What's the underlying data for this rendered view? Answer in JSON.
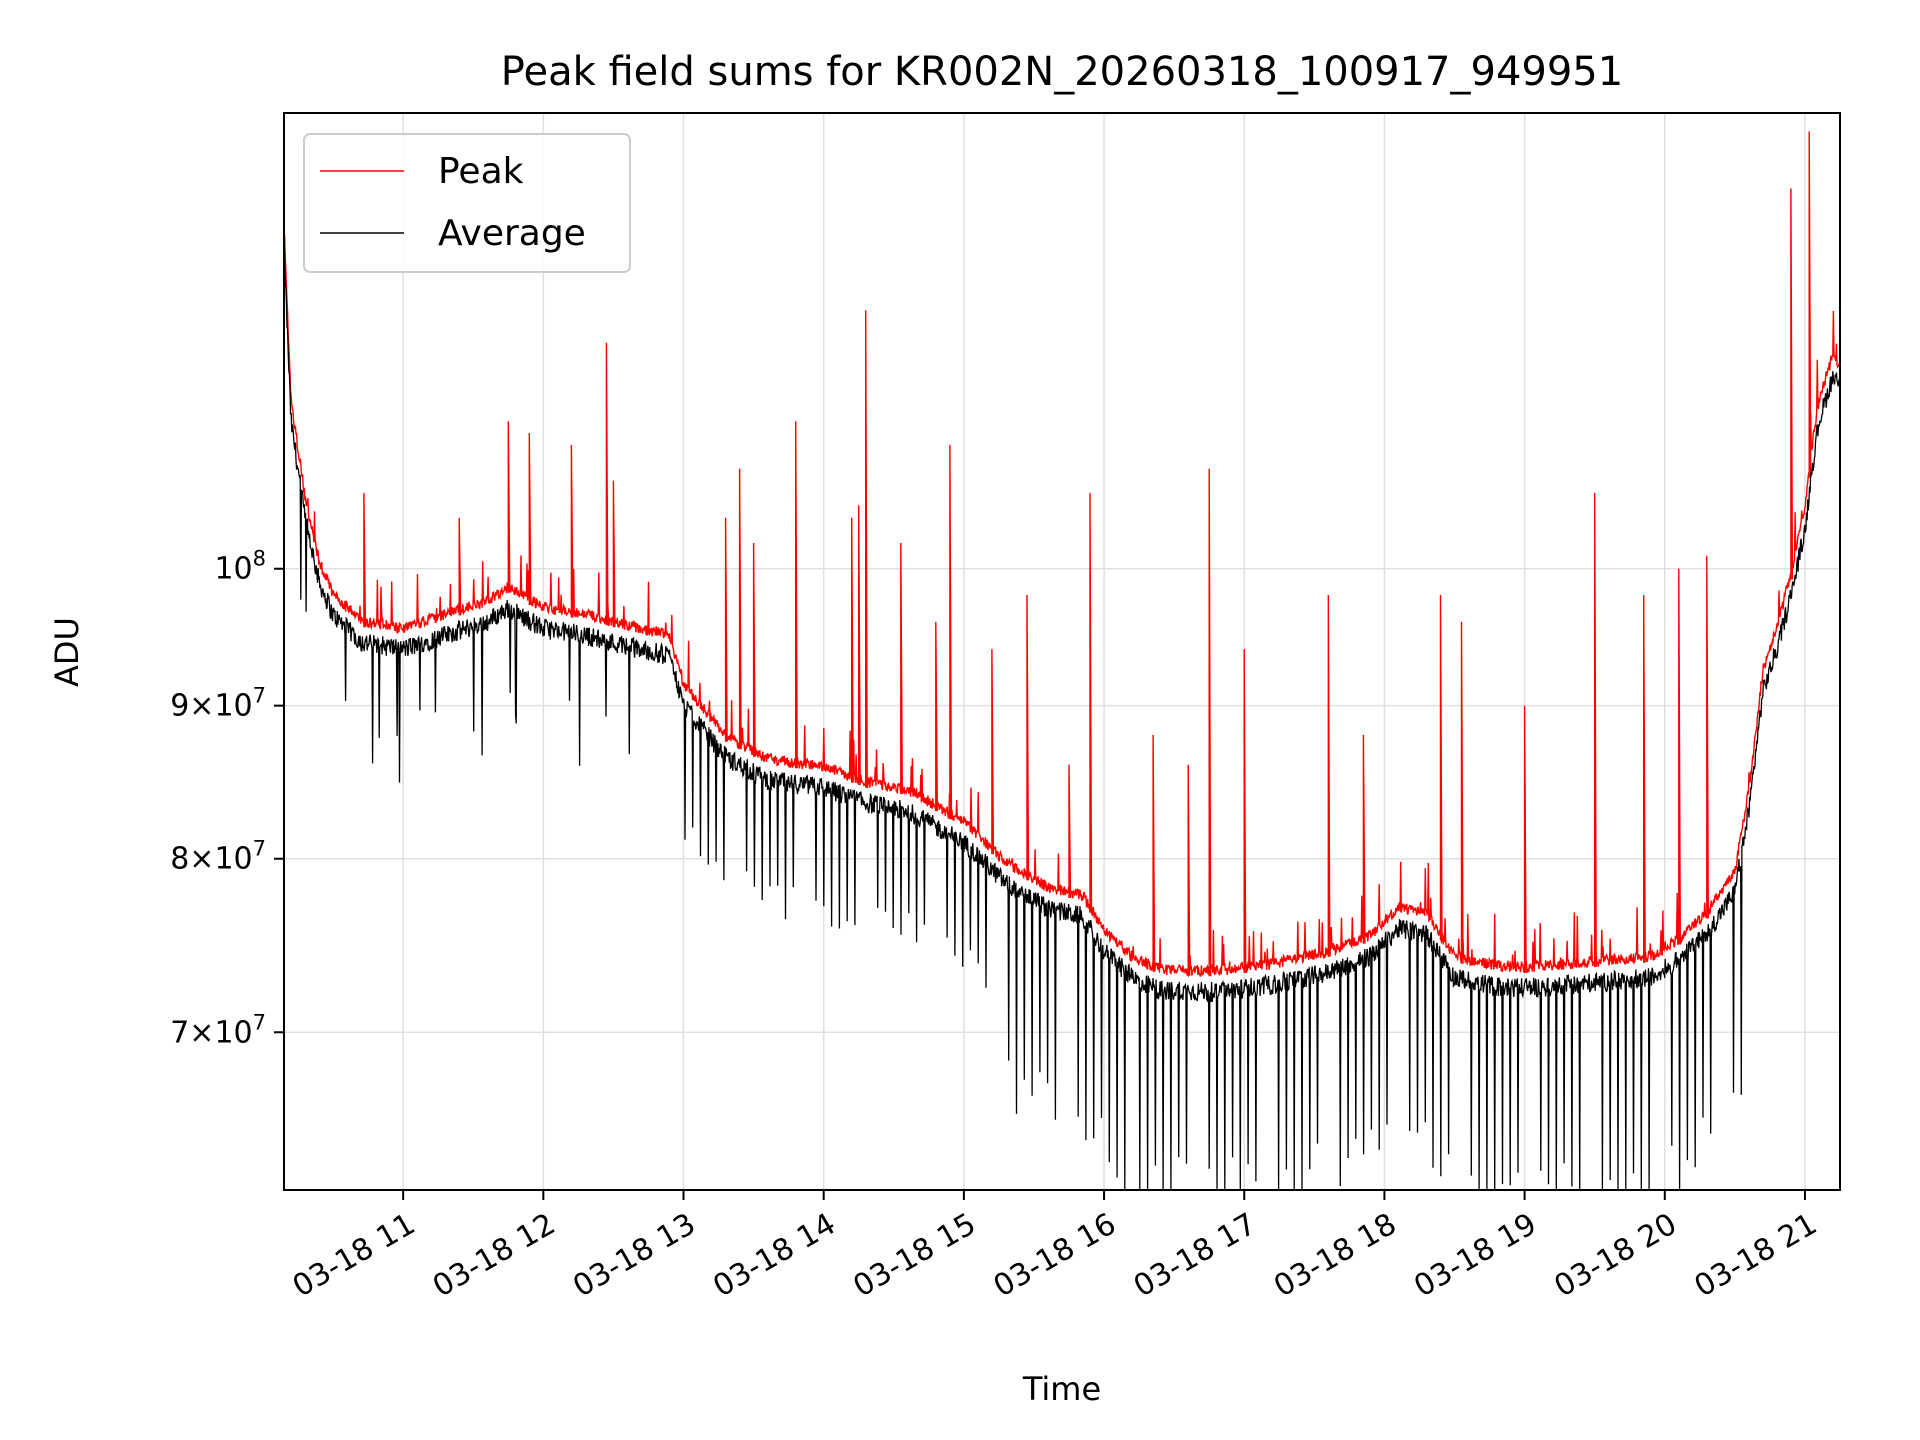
{
  "chart_data": {
    "type": "line",
    "title": "Peak field sums for KR002N_20260318_100917_949951",
    "xlabel": "Time",
    "ylabel": "ADU",
    "yscale": "log",
    "ylim": [
      62000000,
      142000000
    ],
    "xlim": [
      10.15,
      21.25
    ],
    "grid": true,
    "legend_position": "top-left",
    "x_ticks": [
      {
        "value": 11,
        "label": "03-18 11"
      },
      {
        "value": 12,
        "label": "03-18 12"
      },
      {
        "value": 13,
        "label": "03-18 13"
      },
      {
        "value": 14,
        "label": "03-18 14"
      },
      {
        "value": 15,
        "label": "03-18 15"
      },
      {
        "value": 16,
        "label": "03-18 16"
      },
      {
        "value": 17,
        "label": "03-18 17"
      },
      {
        "value": 18,
        "label": "03-18 18"
      },
      {
        "value": 19,
        "label": "03-18 19"
      },
      {
        "value": 20,
        "label": "03-18 20"
      },
      {
        "value": 21,
        "label": "03-18 21"
      }
    ],
    "y_ticks": [
      {
        "value": 70000000,
        "base": "7",
        "exp": "7"
      },
      {
        "value": 80000000,
        "base": "8",
        "exp": "7"
      },
      {
        "value": 90000000,
        "base": "9",
        "exp": "7"
      },
      {
        "value": 100000000,
        "base": "",
        "exp": "8"
      }
    ],
    "series": [
      {
        "name": "Peak",
        "color": "#ff0000"
      },
      {
        "name": "Average",
        "color": "#000000"
      }
    ],
    "baseline": {
      "x": [
        10.15,
        10.2,
        10.3,
        10.4,
        10.5,
        10.7,
        11.0,
        11.3,
        11.6,
        11.75,
        12.0,
        12.3,
        12.6,
        12.9,
        13.0,
        13.3,
        13.6,
        14.0,
        14.3,
        14.6,
        15.0,
        15.3,
        15.6,
        15.85,
        16.0,
        16.2,
        16.4,
        16.8,
        17.2,
        17.6,
        17.9,
        18.1,
        18.3,
        18.5,
        18.8,
        19.0,
        19.3,
        19.6,
        19.9,
        20.1,
        20.3,
        20.5,
        20.6,
        20.7,
        20.8,
        20.9,
        21.0,
        21.05,
        21.1,
        21.2,
        21.25
      ],
      "y": [
        128000000,
        112000000,
        104000000,
        99000000,
        96500000,
        94500000,
        94000000,
        95000000,
        96000000,
        97000000,
        95500000,
        95000000,
        94200000,
        93500000,
        90000000,
        86500000,
        85000000,
        84500000,
        83500000,
        83000000,
        81000000,
        78500000,
        77000000,
        76500000,
        74500000,
        73000000,
        72300000,
        72200000,
        72600000,
        73300000,
        74200000,
        75800000,
        75500000,
        73000000,
        72500000,
        72400000,
        72600000,
        72800000,
        73000000,
        74000000,
        75500000,
        78000000,
        83000000,
        91000000,
        94000000,
        98000000,
        103000000,
        108000000,
        112000000,
        116000000,
        115000000
      ]
    },
    "peak_spikes": [
      {
        "x": 10.72,
        "y": 106000000
      },
      {
        "x": 11.4,
        "y": 104000000
      },
      {
        "x": 11.75,
        "y": 112000000
      },
      {
        "x": 11.9,
        "y": 111000000
      },
      {
        "x": 12.2,
        "y": 110000000
      },
      {
        "x": 12.45,
        "y": 119000000
      },
      {
        "x": 12.5,
        "y": 107000000
      },
      {
        "x": 13.3,
        "y": 104000000
      },
      {
        "x": 13.4,
        "y": 108000000
      },
      {
        "x": 13.5,
        "y": 102000000
      },
      {
        "x": 13.8,
        "y": 112000000
      },
      {
        "x": 14.2,
        "y": 104000000
      },
      {
        "x": 14.25,
        "y": 105000000
      },
      {
        "x": 14.3,
        "y": 122000000
      },
      {
        "x": 14.55,
        "y": 102000000
      },
      {
        "x": 14.8,
        "y": 96000000
      },
      {
        "x": 14.9,
        "y": 110000000
      },
      {
        "x": 15.2,
        "y": 94000000
      },
      {
        "x": 15.45,
        "y": 98000000
      },
      {
        "x": 15.75,
        "y": 86000000
      },
      {
        "x": 15.9,
        "y": 106000000
      },
      {
        "x": 16.35,
        "y": 88000000
      },
      {
        "x": 16.6,
        "y": 86000000
      },
      {
        "x": 16.75,
        "y": 108000000
      },
      {
        "x": 17.0,
        "y": 94000000
      },
      {
        "x": 17.6,
        "y": 98000000
      },
      {
        "x": 17.85,
        "y": 88000000
      },
      {
        "x": 18.4,
        "y": 98000000
      },
      {
        "x": 18.55,
        "y": 96000000
      },
      {
        "x": 19.0,
        "y": 90000000
      },
      {
        "x": 19.5,
        "y": 106000000
      },
      {
        "x": 19.85,
        "y": 98000000
      },
      {
        "x": 20.1,
        "y": 100000000
      },
      {
        "x": 20.3,
        "y": 101000000
      },
      {
        "x": 20.9,
        "y": 134000000
      },
      {
        "x": 21.03,
        "y": 140000000
      }
    ],
    "avg_dips": {
      "spacing": 0.055,
      "from": 12.9,
      "to": 20.6
    }
  }
}
